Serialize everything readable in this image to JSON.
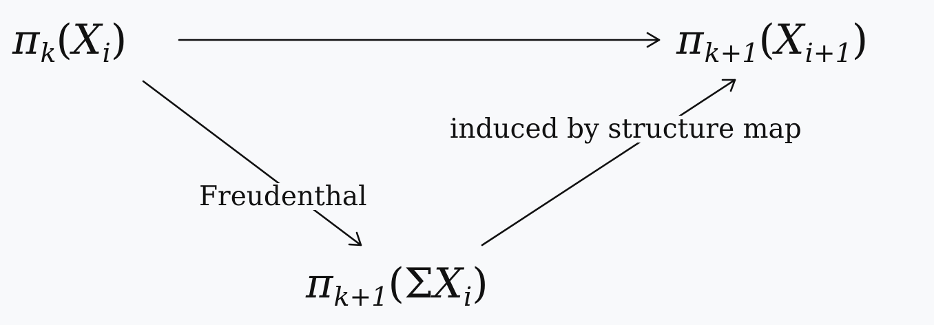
{
  "nodes": {
    "top_left": {
      "pi": "π",
      "pi_sub": "k",
      "open_paren": "(",
      "x": "X",
      "x_sub": "i",
      "close_paren": ")"
    },
    "top_right": {
      "pi": "π",
      "pi_sub": "k+1",
      "open_paren": "(",
      "x": "X",
      "x_sub": "i+1",
      "close_paren": ")"
    },
    "bottom": {
      "pi": "π",
      "pi_sub": "k+1",
      "open_paren": "(",
      "sigma": "Σ",
      "x": "X",
      "x_sub": "i",
      "close_paren": ")"
    }
  },
  "arrows": {
    "freudenthal_label": "Freudenthal",
    "structure_label": "induced by structure map"
  }
}
